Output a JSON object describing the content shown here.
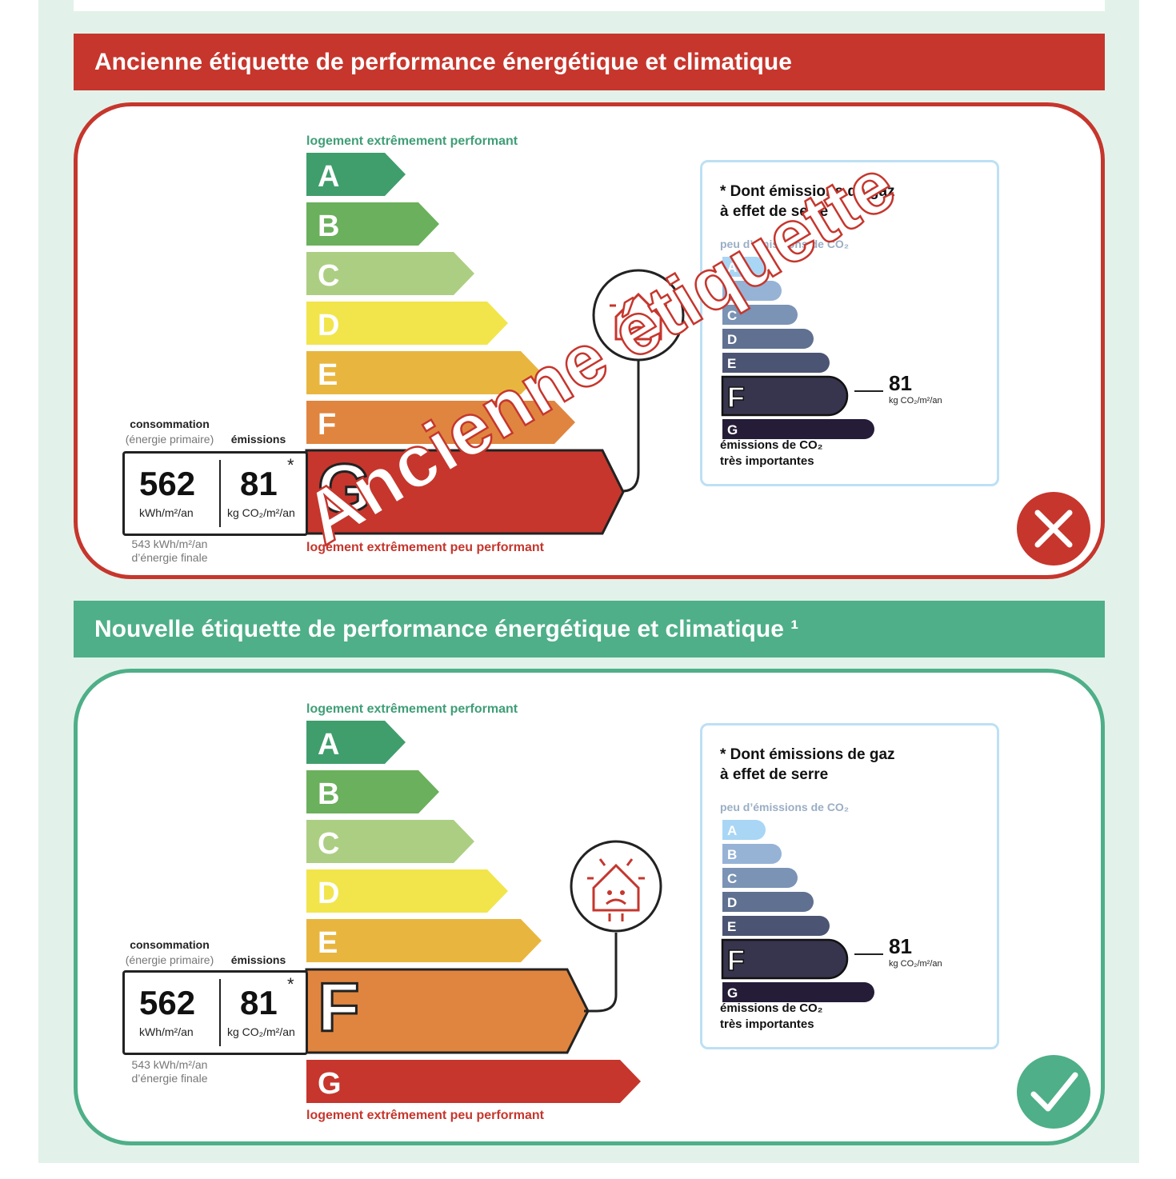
{
  "old": {
    "banner": "Ancienne étiquette de performance énergétique et climatique",
    "top_caption": "logement extrêmement performant",
    "bottom_caption": "logement extrêmement peu performant",
    "consumption_label": "consommation",
    "consumption_sub": "(énergie primaire)",
    "emissions_label": "émissions",
    "consumption_value": "562",
    "consumption_unit": "kWh/m²/an",
    "emissions_value": "81",
    "emissions_unit": "kg CO₂/m²/an",
    "star": "*",
    "final_energy": "543 kWh/m²/an",
    "final_energy_label": "d’énergie finale",
    "classes": [
      "A",
      "B",
      "C",
      "D",
      "E",
      "F",
      "G"
    ],
    "highlight_class": "G",
    "ges_title_line1": "* Dont émissions de gaz",
    "ges_title_line2": "à effet de serre",
    "ges_low": "peu d’émissions de CO₂",
    "ges_high_line1": "émissions de CO₂",
    "ges_high_line2": "très importantes",
    "ges_classes": [
      "A",
      "B",
      "C",
      "D",
      "E",
      "F",
      "G"
    ],
    "ges_highlight": "F",
    "ges_value": "81",
    "ges_unit": "kg CO₂/m²/an",
    "watermark": "Ancienne étiquette",
    "status_icon": "cross-icon"
  },
  "new": {
    "banner": "Nouvelle étiquette de performance énergétique et climatique ¹",
    "top_caption": "logement extrêmement performant",
    "bottom_caption": "logement extrêmement peu performant",
    "consumption_label": "consommation",
    "consumption_sub": "(énergie primaire)",
    "emissions_label": "émissions",
    "consumption_value": "562",
    "consumption_unit": "kWh/m²/an",
    "emissions_value": "81",
    "emissions_unit": "kg CO₂/m²/an",
    "star": "*",
    "final_energy": "543 kWh/m²/an",
    "final_energy_label": "d’énergie finale",
    "classes": [
      "A",
      "B",
      "C",
      "D",
      "E",
      "F",
      "G"
    ],
    "highlight_class": "F",
    "ges_title_line1": "* Dont émissions de gaz",
    "ges_title_line2": "à effet de serre",
    "ges_low": "peu d’émissions de CO₂",
    "ges_high_line1": "émissions de CO₂",
    "ges_high_line2": "très importantes",
    "ges_classes": [
      "A",
      "B",
      "C",
      "D",
      "E",
      "F",
      "G"
    ],
    "ges_highlight": "F",
    "ges_value": "81",
    "ges_unit": "kg CO₂/m²/an",
    "status_icon": "check-icon"
  },
  "colors": {
    "energy": [
      "#3f9e6c",
      "#6bb05c",
      "#acce82",
      "#f1e54b",
      "#e8b63f",
      "#e0853f",
      "#c6362d"
    ],
    "ges": [
      "#a9d6f5",
      "#96b3d6",
      "#7b93b4",
      "#5f7090",
      "#4b5472",
      "#37344d",
      "#251c38"
    ],
    "red": "#c6362d",
    "green": "#4eaf88"
  }
}
